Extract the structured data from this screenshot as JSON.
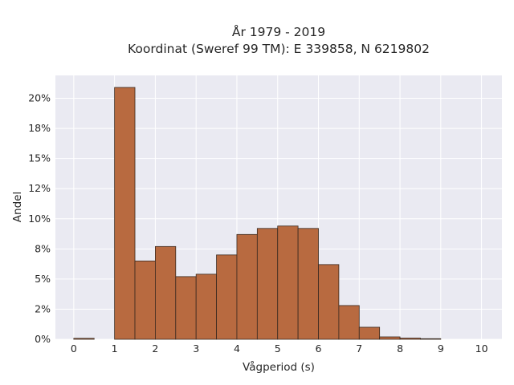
{
  "chart_data": {
    "type": "bar",
    "title": "År 1979 - 2019",
    "subtitle": "Koordinat (Sweref 99 TM): E 339858, N 6219802",
    "xlabel": "Vågperiod (s)",
    "ylabel": "Andel",
    "bin_width": 0.5,
    "bins": [
      {
        "start": 0.0,
        "value": 0.08
      },
      {
        "start": 1.0,
        "value": 20.9
      },
      {
        "start": 1.5,
        "value": 6.5
      },
      {
        "start": 2.0,
        "value": 7.7
      },
      {
        "start": 2.5,
        "value": 5.2
      },
      {
        "start": 3.0,
        "value": 5.4
      },
      {
        "start": 3.5,
        "value": 7.0
      },
      {
        "start": 4.0,
        "value": 8.7
      },
      {
        "start": 4.5,
        "value": 9.2
      },
      {
        "start": 5.0,
        "value": 9.4
      },
      {
        "start": 5.5,
        "value": 9.2
      },
      {
        "start": 6.0,
        "value": 6.2
      },
      {
        "start": 6.5,
        "value": 2.8
      },
      {
        "start": 7.0,
        "value": 1.0
      },
      {
        "start": 7.5,
        "value": 0.2
      },
      {
        "start": 8.0,
        "value": 0.1
      },
      {
        "start": 8.5,
        "value": 0.05
      }
    ],
    "xlim": [
      -0.45,
      10.5
    ],
    "ylim": [
      0,
      21.9
    ],
    "xticks": [
      0,
      1,
      2,
      3,
      4,
      5,
      6,
      7,
      8,
      9,
      10
    ],
    "yticks": [
      0,
      2.5,
      5,
      7.5,
      10,
      12.5,
      15,
      17.5,
      20
    ],
    "ytick_labels": [
      "0%",
      "2%",
      "5%",
      "8%",
      "10%",
      "12%",
      "15%",
      "18%",
      "20%"
    ],
    "grid": true,
    "colors": {
      "bar_fill": "#b86a40",
      "bar_edge": "#3a2a20",
      "plot_bg": "#eaeaf2",
      "grid": "#ffffff"
    }
  }
}
